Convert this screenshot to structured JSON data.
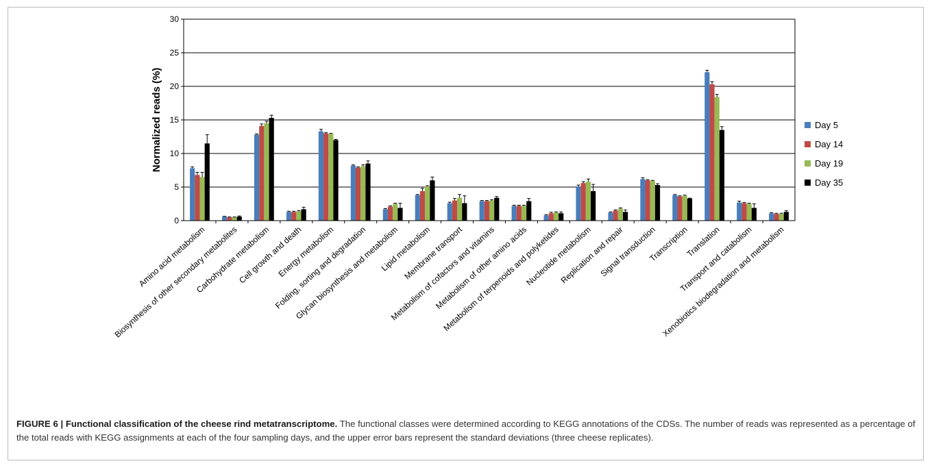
{
  "chart_data": {
    "type": "bar",
    "ylabel": "Normalized reads (%)",
    "ylim": [
      0,
      30
    ],
    "yticks": [
      0,
      5,
      10,
      15,
      20,
      25,
      30
    ],
    "grid": true,
    "legend_position": "right",
    "error_bars": "upper",
    "categories": [
      "Amino acid metabolism",
      "Biosynthesis of other secondary metabolites",
      "Carbohydrate metabolism",
      "Cell growth and death",
      "Energy metabolism",
      "Folding, sorting and degradation",
      "Glycan biosynthesis and metabolism",
      "Lipid metabolism",
      "Membrane transport",
      "Metabolism of cofactors and vitamins",
      "Metabolism of other amino acids",
      "Metabolism of terpenoids and polyketides",
      "Nucleotide metabolism",
      "Replication and repair",
      "Signal transduction",
      "Transcription",
      "Translation",
      "Transport and catabolism",
      "Xenobiotics biodegradation and metabolism"
    ],
    "series": [
      {
        "name": "Day 5",
        "color": "#4a7ebb",
        "values": [
          7.8,
          0.6,
          12.8,
          1.3,
          13.3,
          8.2,
          1.7,
          3.8,
          2.6,
          2.9,
          2.2,
          0.8,
          5.1,
          1.2,
          6.2,
          3.8,
          22.1,
          2.7,
          1.1
        ],
        "errors": [
          0.2,
          0.05,
          0.1,
          0.1,
          0.3,
          0.1,
          0.1,
          0.1,
          0.15,
          0.1,
          0.1,
          0.1,
          0.2,
          0.1,
          0.2,
          0.1,
          0.3,
          0.2,
          0.1
        ]
      },
      {
        "name": "Day 14",
        "color": "#be4b48",
        "values": [
          6.8,
          0.5,
          14.1,
          1.3,
          13.0,
          7.9,
          2.1,
          4.4,
          3.0,
          2.9,
          2.2,
          1.1,
          5.6,
          1.5,
          6.0,
          3.6,
          20.3,
          2.6,
          1.0
        ],
        "errors": [
          0.4,
          0.05,
          0.3,
          0.1,
          0.1,
          0.1,
          0.1,
          0.4,
          0.3,
          0.1,
          0.1,
          0.15,
          0.2,
          0.1,
          0.1,
          0.1,
          0.4,
          0.1,
          0.1
        ]
      },
      {
        "name": "Day 19",
        "color": "#98b954",
        "values": [
          6.5,
          0.5,
          14.5,
          1.4,
          12.9,
          8.1,
          2.5,
          5.1,
          3.4,
          3.0,
          2.2,
          1.2,
          5.8,
          1.8,
          5.9,
          3.7,
          18.4,
          2.5,
          1.0
        ],
        "errors": [
          0.7,
          0.05,
          0.3,
          0.1,
          0.1,
          0.2,
          0.1,
          0.1,
          0.5,
          0.1,
          0.1,
          0.1,
          0.4,
          0.1,
          0.1,
          0.1,
          0.4,
          0.1,
          0.1
        ]
      },
      {
        "name": "Day 35",
        "color": "#000000",
        "values": [
          11.5,
          0.6,
          15.3,
          1.7,
          12.0,
          8.5,
          1.9,
          6.0,
          2.6,
          3.4,
          2.9,
          1.1,
          4.4,
          1.3,
          5.3,
          3.3,
          13.5,
          1.9,
          1.3
        ],
        "errors": [
          1.3,
          0.1,
          0.4,
          0.3,
          0.1,
          0.4,
          0.7,
          0.5,
          1.1,
          0.2,
          0.4,
          0.2,
          1.0,
          0.3,
          0.2,
          0.05,
          0.5,
          0.6,
          0.2
        ]
      }
    ]
  },
  "caption": {
    "label": "FIGURE 6 | Functional classification of the cheese rind metatranscriptome.",
    "text": " The functional classes were determined according to KEGG annotations of the CDSs. The number of reads was represented as a percentage of the total reads with KEGG assignments at each of the four sampling days, and the upper error bars represent the standard deviations (three cheese replicates)."
  }
}
